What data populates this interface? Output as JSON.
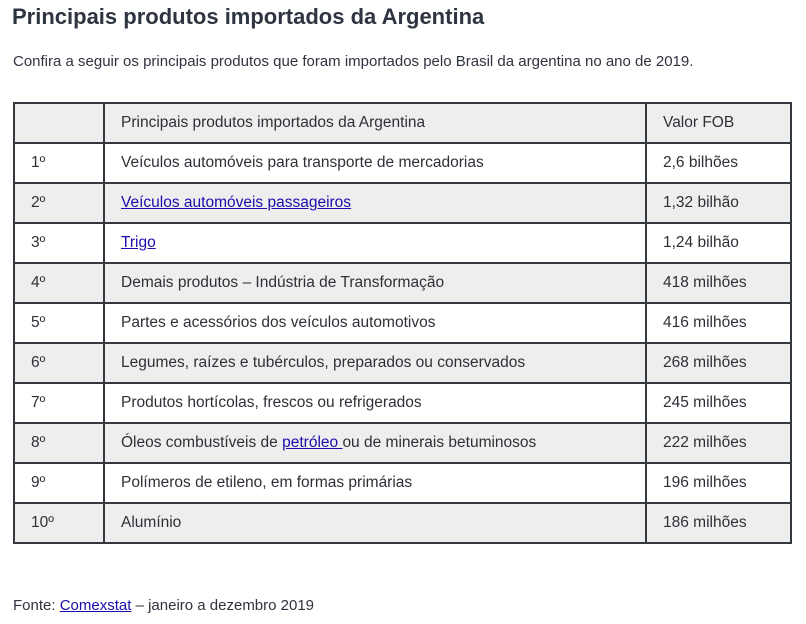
{
  "heading": "Principais produtos importados da Argentina",
  "intro": "Confira a seguir os principais produtos que foram importados pelo Brasil da argentina no ano de 2019.",
  "table": {
    "headers": [
      "",
      "Principais produtos importados da Argentina",
      "Valor FOB"
    ],
    "rows": [
      {
        "rank": "1º",
        "product": "Veículos automóveis para transporte de mercadorias",
        "value": "2,6 bilhões"
      },
      {
        "rank": "2º",
        "product_link": "Veículos automóveis passageiros",
        "value": "1,32 bilhão"
      },
      {
        "rank": "3º",
        "product_link": "Trigo",
        "value": "1,24 bilhão"
      },
      {
        "rank": "4º",
        "product": "Demais produtos – Indústria de Transformação",
        "value": "418 milhões"
      },
      {
        "rank": "5º",
        "product": "Partes e acessórios dos veículos automotivos",
        "value": "416 milhões"
      },
      {
        "rank": "6º",
        "product": "Legumes, raízes e tubérculos, preparados ou conservados",
        "value": "268 milhões"
      },
      {
        "rank": "7º",
        "product": "Produtos hortícolas, frescos ou refrigerados",
        "value": "245 milhões"
      },
      {
        "rank": "8º",
        "product_pre": "Óleos combustíveis de ",
        "product_link": "petróleo ",
        "product_post": "ou de minerais betuminosos",
        "value": "222 milhões"
      },
      {
        "rank": "9º",
        "product": "Polímeros de etileno, em formas primárias",
        "value": "196 milhões"
      },
      {
        "rank": "10º",
        "product": "Alumínio",
        "value": "186 milhões"
      }
    ]
  },
  "source": {
    "prefix": "Fonte: ",
    "link": "Comexstat",
    "suffix": " – janeiro a dezembro 2019"
  },
  "colors": {
    "link": "#1a0dab",
    "border": "#34393f",
    "stripe": "#eeeeee"
  }
}
